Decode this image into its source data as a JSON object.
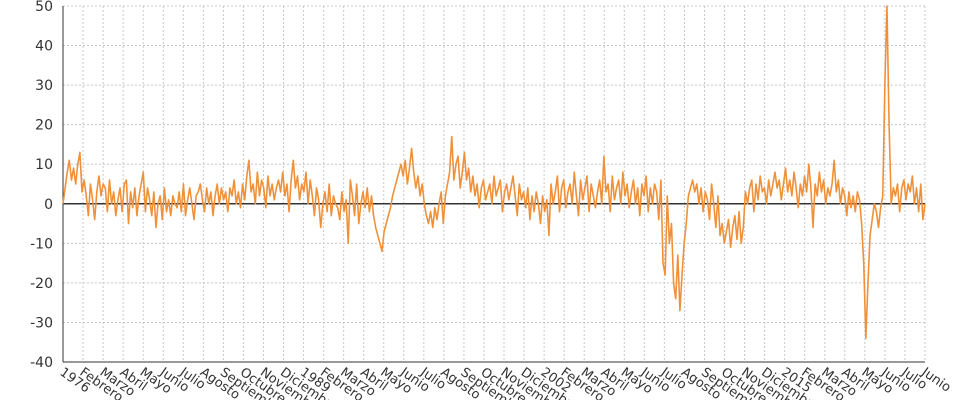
{
  "chart_data": {
    "type": "line",
    "title": "",
    "xlabel": "",
    "ylabel": "",
    "ylim": [
      -40,
      50
    ],
    "yticks": [
      -40,
      -30,
      -20,
      -10,
      0,
      10,
      20,
      30,
      40,
      50
    ],
    "grid": true,
    "legend": "none",
    "colors": {
      "line": "#f0913a",
      "zero_line": "#333333"
    },
    "xtick_labels": [
      "1976",
      "Febrero",
      "Marzo",
      "Abril",
      "Mayo",
      "Junio",
      "Julio",
      "Agosto",
      "Septiembre",
      "Octubre",
      "Noviembre",
      "Diciembre",
      "1989",
      "Febrero",
      "Marzo",
      "Abril",
      "Mayo",
      "Junio",
      "Julio",
      "Agosto",
      "Septiembre",
      "Octubre",
      "Noviembre",
      "Diciembre",
      "2002",
      "Febrero",
      "Marzo",
      "Abril",
      "Mayo",
      "Junio",
      "Julio",
      "Agosto",
      "Septiembre",
      "Octubre",
      "Noviembre",
      "Diciembre",
      "2015",
      "Febrero",
      "Marzo",
      "Abril",
      "Mayo",
      "Junio",
      "Julio",
      "Junio"
    ],
    "series": [
      {
        "values": [
          0,
          4,
          8,
          11,
          6,
          9,
          5,
          10,
          13,
          3,
          6,
          2,
          -3,
          5,
          1,
          -4,
          3,
          7,
          2,
          5,
          4,
          -2,
          6,
          0,
          3,
          -3,
          1,
          4,
          -2,
          5,
          6,
          -5,
          3,
          -1,
          4,
          -3,
          2,
          5,
          8,
          -2,
          4,
          1,
          -3,
          3,
          -6,
          0,
          2,
          -4,
          4,
          -2,
          1,
          -3,
          2,
          0,
          -1,
          3,
          -2,
          5,
          -3,
          1,
          4,
          0,
          -4,
          2,
          3,
          5,
          1,
          -2,
          4,
          0,
          3,
          -3,
          2,
          5,
          0,
          4,
          1,
          3,
          -2,
          4,
          2,
          6,
          0,
          3,
          -1,
          5,
          1,
          7,
          11,
          3,
          5,
          0,
          8,
          2,
          6,
          4,
          -1,
          7,
          2,
          5,
          1,
          4,
          6,
          3,
          8,
          2,
          5,
          -2,
          6,
          11,
          4,
          7,
          1,
          5,
          3,
          8,
          0,
          6,
          2,
          -3,
          4,
          1,
          -6,
          0,
          3,
          -2,
          5,
          -3,
          2,
          0,
          -1,
          -4,
          3,
          -2,
          1,
          -10,
          6,
          2,
          -3,
          5,
          -5,
          0,
          3,
          -1,
          4,
          -2,
          2,
          -3,
          -6,
          -8,
          -10,
          -12,
          -7,
          -5,
          -3,
          -1,
          2,
          4,
          6,
          8,
          10,
          7,
          11,
          5,
          9,
          14,
          8,
          4,
          7,
          2,
          5,
          0,
          -3,
          -5,
          -2,
          -6,
          -1,
          -4,
          0,
          3,
          -5,
          2,
          5,
          8,
          17,
          6,
          10,
          12,
          4,
          8,
          13,
          6,
          9,
          3,
          7,
          2,
          5,
          -1,
          4,
          6,
          1,
          3,
          5,
          0,
          7,
          2,
          4,
          6,
          -2,
          3,
          5,
          1,
          4,
          7,
          2,
          -3,
          5,
          1,
          3,
          -1,
          4,
          -4,
          2,
          -2,
          3,
          0,
          -5,
          2,
          -2,
          1,
          -8,
          5,
          0,
          3,
          7,
          -2,
          4,
          6,
          -1,
          3,
          5,
          0,
          8,
          2,
          -3,
          6,
          1,
          4,
          7,
          -2,
          5,
          2,
          -1,
          3,
          6,
          0,
          12,
          3,
          5,
          -2,
          7,
          1,
          4,
          6,
          0,
          8,
          2,
          5,
          -1,
          3,
          6,
          0,
          4,
          -3,
          5,
          2,
          7,
          -2,
          4,
          0,
          5,
          3,
          -4,
          6,
          -15,
          -18,
          2,
          -10,
          -5,
          -20,
          -24,
          -13,
          -27,
          -18,
          -10,
          -5,
          2,
          4,
          6,
          3,
          5,
          0,
          4,
          -2,
          3,
          1,
          -4,
          5,
          0,
          -6,
          2,
          -8,
          -5,
          -10,
          -7,
          -4,
          -11,
          -6,
          -3,
          -9,
          -2,
          -10,
          -6,
          3,
          0,
          4,
          6,
          -2,
          5,
          1,
          7,
          3,
          4,
          0,
          6,
          2,
          5,
          8,
          4,
          6,
          1,
          5,
          9,
          3,
          6,
          2,
          8,
          4,
          -1,
          5,
          2,
          7,
          3,
          10,
          4,
          -6,
          5,
          2,
          8,
          3,
          6,
          0,
          4,
          2,
          5,
          11,
          3,
          6,
          0,
          4,
          2,
          -3,
          3,
          -1,
          2,
          -2,
          3,
          1,
          -5,
          -15,
          -34,
          -20,
          -8,
          -4,
          0,
          -2,
          -6,
          -1,
          2,
          30,
          50,
          20,
          0,
          4,
          2,
          5,
          -2,
          4,
          6,
          1,
          5,
          3,
          7,
          0,
          4,
          -2,
          5,
          -4,
          0
        ]
      }
    ]
  }
}
